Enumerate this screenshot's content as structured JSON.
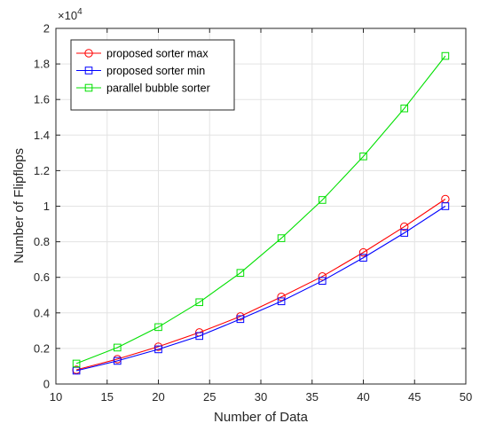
{
  "chart_data": {
    "type": "line",
    "title": "",
    "xlabel": "Number of Data",
    "ylabel": "Number of Flipflops",
    "y_exponent_label": "×10",
    "y_exponent_power": "4",
    "xlim": [
      10,
      50
    ],
    "ylim": [
      0,
      20000
    ],
    "x_ticks": [
      10,
      15,
      20,
      25,
      30,
      35,
      40,
      45,
      50
    ],
    "x_tick_labels": [
      "10",
      "15",
      "20",
      "25",
      "30",
      "35",
      "40",
      "45",
      "50"
    ],
    "y_ticks": [
      0,
      2000,
      4000,
      6000,
      8000,
      10000,
      12000,
      14000,
      16000,
      18000,
      20000
    ],
    "y_tick_labels": [
      "0",
      "0.2",
      "0.4",
      "0.6",
      "0.8",
      "1",
      "1.2",
      "1.4",
      "1.6",
      "1.8",
      "2"
    ],
    "grid": true,
    "legend_position": "top-left",
    "x": [
      12,
      16,
      20,
      24,
      28,
      32,
      36,
      40,
      44,
      48
    ],
    "series": [
      {
        "name": "proposed sorter max",
        "color": "#ff0000",
        "marker": "circle",
        "values": [
          800,
          1400,
          2100,
          2900,
          3800,
          4900,
          6050,
          7400,
          8850,
          10400
        ]
      },
      {
        "name": "proposed sorter min",
        "color": "#0000ff",
        "marker": "square",
        "values": [
          750,
          1300,
          1950,
          2700,
          3650,
          4650,
          5800,
          7100,
          8500,
          10000
        ]
      },
      {
        "name": "parallel bubble sorter",
        "color": "#00e000",
        "marker": "square",
        "values": [
          1150,
          2050,
          3200,
          4600,
          6250,
          8200,
          10350,
          12800,
          15500,
          18450
        ]
      }
    ]
  }
}
